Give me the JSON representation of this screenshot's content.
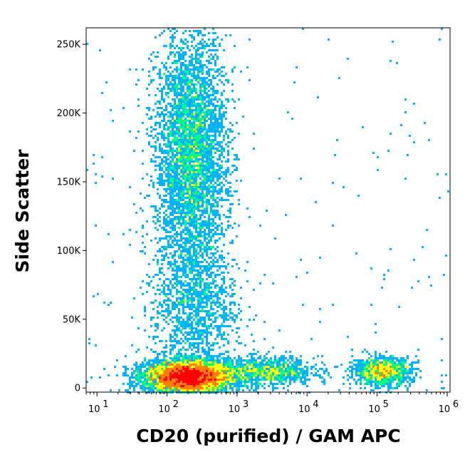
{
  "chart_data": {
    "type": "scatter",
    "style": "flow-cytometry-density-dot-plot",
    "xlabel": "CD20 (purified) / GAM APC",
    "ylabel": "Side Scatter",
    "x_scale": "log",
    "x_range": [
      7,
      1100000
    ],
    "y_range": [
      -3000,
      262000
    ],
    "x_ticks": [
      {
        "value": 10,
        "base": "10",
        "exp": "1"
      },
      {
        "value": 100,
        "base": "10",
        "exp": "2"
      },
      {
        "value": 1000,
        "base": "10",
        "exp": "3"
      },
      {
        "value": 10000,
        "base": "10",
        "exp": "4"
      },
      {
        "value": 100000,
        "base": "10",
        "exp": "5"
      },
      {
        "value": 1000000,
        "base": "10",
        "exp": "6"
      }
    ],
    "y_ticks": [
      {
        "value": 0,
        "label": "0"
      },
      {
        "value": 50000,
        "label": "50K"
      },
      {
        "value": 100000,
        "label": "100K"
      },
      {
        "value": 150000,
        "label": "150K"
      },
      {
        "value": 200000,
        "label": "200K"
      },
      {
        "value": 250000,
        "label": "250K"
      }
    ],
    "grid": false,
    "density_colors": [
      "#0000ff",
      "#00b4ff",
      "#00ff80",
      "#ffff00",
      "#ff8000",
      "#ff0000"
    ],
    "populations": [
      {
        "x_center": 200,
        "x_spread_decades": 0.3,
        "y_center": 8000,
        "y_spread": 6000,
        "density": "high"
      },
      {
        "x_center": 220,
        "x_spread_decades": 0.25,
        "y_center": 170000,
        "y_spread": 45000,
        "density": "medium"
      },
      {
        "x_center": 250,
        "x_spread_decades": 0.3,
        "y_center": 60000,
        "y_spread": 25000,
        "density": "low"
      },
      {
        "x_center": 2500,
        "x_spread_decades": 0.35,
        "y_center": 12000,
        "y_spread": 5000,
        "density": "low"
      },
      {
        "x_center": 120000,
        "x_spread_decades": 0.2,
        "y_center": 12000,
        "y_spread": 5000,
        "density": "low"
      }
    ]
  }
}
